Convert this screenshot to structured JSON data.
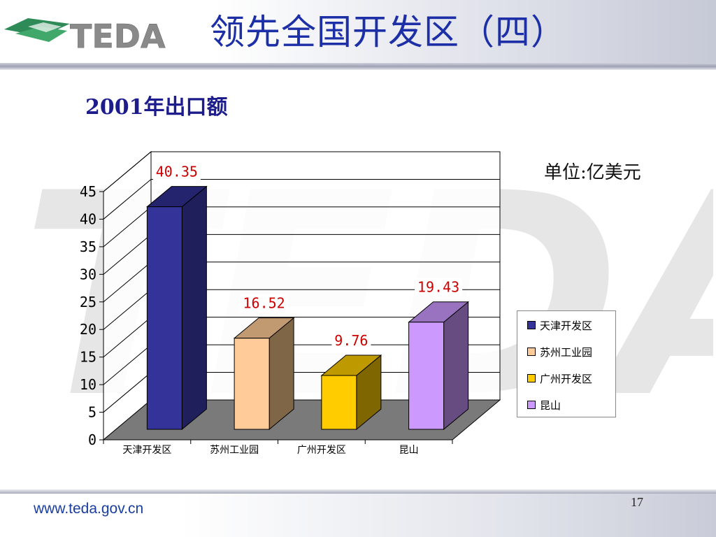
{
  "slide": {
    "title": "领先全国开发区（四）",
    "subtitle": "2001年出口额",
    "unit": "单位:亿美元",
    "logo_text": "TEDA",
    "footer_url": "www.teda.gov.cn",
    "page_number": "17"
  },
  "colors": {
    "title": "#1d2fa6",
    "data_label": "#cc0000",
    "floor": "#7a7a7a",
    "wall": "#ffffff",
    "logo_green": "#2e8b57"
  },
  "chart_data": {
    "type": "bar",
    "categories": [
      "天津开发区",
      "苏州工业园",
      "广州开发区",
      "昆山"
    ],
    "values": [
      40.35,
      16.52,
      9.76,
      19.43
    ],
    "value_labels": [
      "40.35",
      "16.52",
      "9.76",
      "19.43"
    ],
    "y_ticks": [
      "0",
      "5",
      "10",
      "15",
      "20",
      "25",
      "30",
      "35",
      "40",
      "45"
    ],
    "ylim": [
      0,
      45
    ],
    "grid": true,
    "three_d": true,
    "legend_position": "right",
    "legend": [
      "天津开发区",
      "苏州工业园",
      "广州开发区",
      "昆山"
    ],
    "series_colors": [
      {
        "front": "#333399",
        "side": "#1f1f5c",
        "top": "#24246e"
      },
      {
        "front": "#ffcc99",
        "side": "#7f6647",
        "top": "#c29a72"
      },
      {
        "front": "#ffcc00",
        "side": "#7f6600",
        "top": "#bf9900"
      },
      {
        "front": "#cc99ff",
        "side": "#664c80",
        "top": "#9973bf"
      }
    ]
  }
}
